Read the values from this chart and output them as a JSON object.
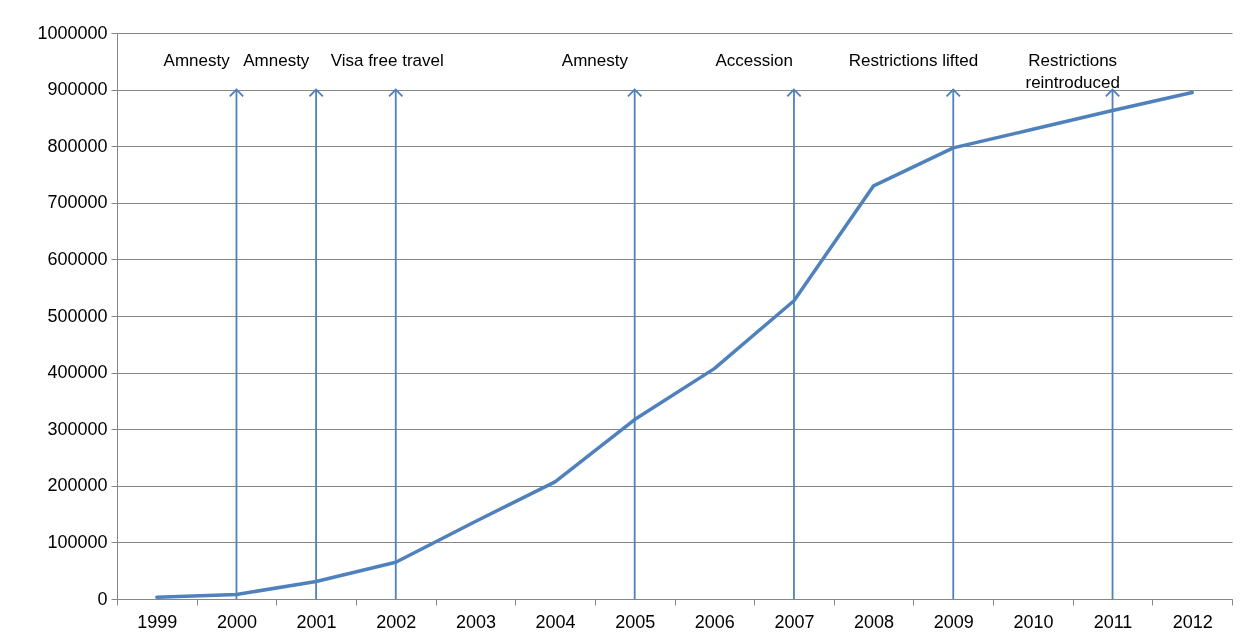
{
  "chart_data": {
    "type": "line",
    "categories": [
      "1999",
      "2000",
      "2001",
      "2002",
      "2003",
      "2004",
      "2005",
      "2006",
      "2007",
      "2008",
      "2009",
      "2010",
      "2011",
      "2012"
    ],
    "series": [
      {
        "color": "#4f81bd",
        "values": [
          3000,
          8000,
          31000,
          65000,
          137000,
          207000,
          317000,
          407000,
          527000,
          730000,
          797000,
          830000,
          863000,
          895000
        ]
      }
    ],
    "ylim": [
      0,
      1000000
    ],
    "yticks": [
      0,
      100000,
      200000,
      300000,
      400000,
      500000,
      600000,
      700000,
      800000,
      900000,
      1000000
    ],
    "grid": "y",
    "marker": "none",
    "ref_lines": [
      {
        "axis": "x",
        "value": "2000",
        "label": "Amnesty",
        "color": "#4f81bd"
      },
      {
        "axis": "x",
        "value": "2001",
        "label": "Amnesty",
        "color": "#4f81bd"
      },
      {
        "axis": "x",
        "value": "2002",
        "label": "Visa free travel",
        "color": "#4f81bd"
      },
      {
        "axis": "x",
        "value": "2005",
        "label": "Amnesty",
        "color": "#4f81bd"
      },
      {
        "axis": "x",
        "value": "2007",
        "label": "Accession",
        "color": "#4f81bd"
      },
      {
        "axis": "x",
        "value": "2009",
        "label": "Restrictions lifted",
        "color": "#4f81bd"
      },
      {
        "axis": "x",
        "value": "2011",
        "label": "Restrictions reintroduced",
        "color": "#4f81bd"
      }
    ]
  }
}
